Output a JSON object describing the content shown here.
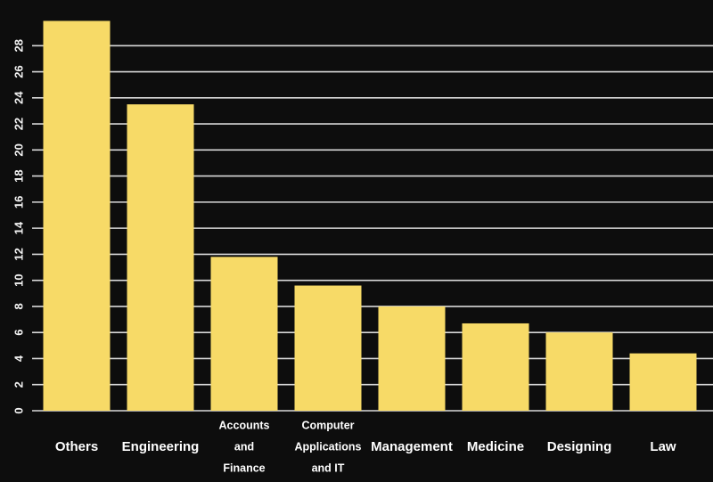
{
  "colors": {
    "background": "#0d0d0d",
    "bar": "#f7da67",
    "grid": "#d9d9d9",
    "text": "#ffffff"
  },
  "chart_data": {
    "type": "bar",
    "title": "",
    "xlabel": "",
    "ylabel": "",
    "categories": [
      [
        "Others"
      ],
      [
        "Engineering"
      ],
      [
        "Accounts",
        "and",
        "Finance"
      ],
      [
        "Computer",
        "Applications",
        "and IT"
      ],
      [
        "Management"
      ],
      [
        "Medicine"
      ],
      [
        "Designing"
      ],
      [
        "Law"
      ]
    ],
    "values": [
      29.9,
      23.5,
      11.8,
      9.6,
      8.0,
      6.7,
      6.0,
      4.4
    ],
    "ylim": [
      0,
      30
    ],
    "yticks": [
      0,
      2,
      4,
      6,
      8,
      10,
      12,
      14,
      16,
      18,
      20,
      22,
      24,
      26,
      28
    ],
    "grid": true,
    "legend": "none"
  }
}
